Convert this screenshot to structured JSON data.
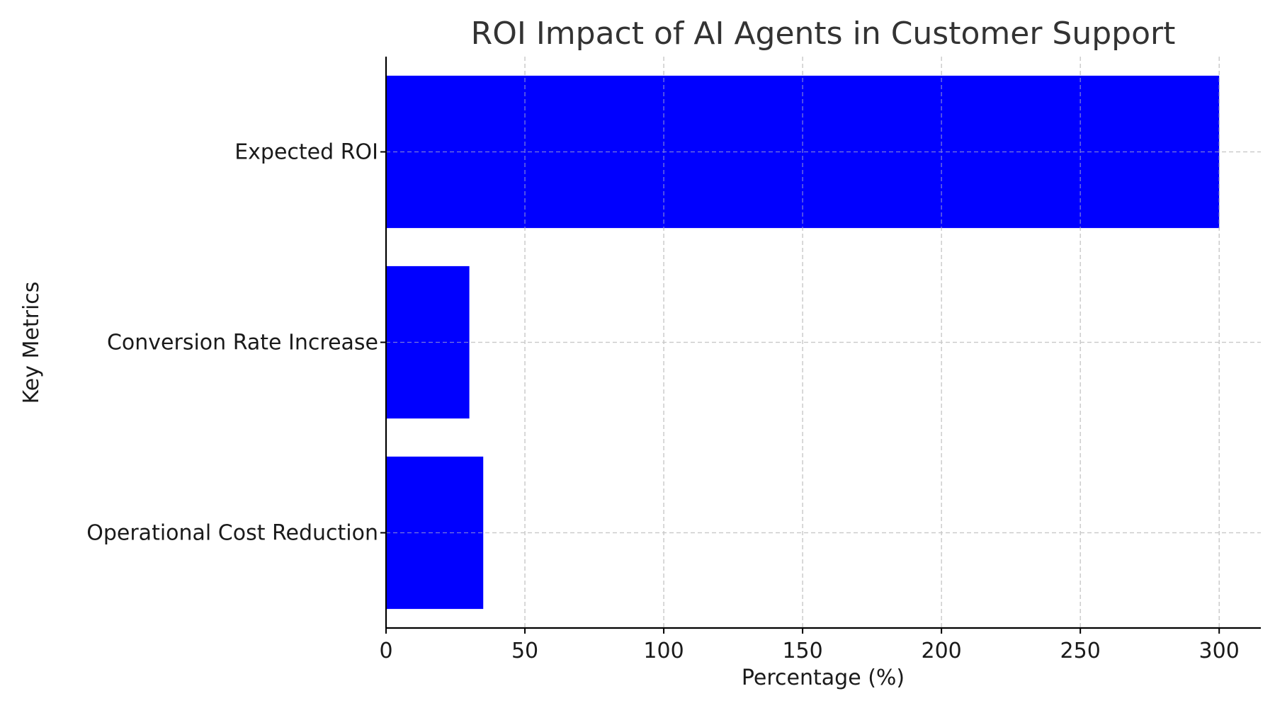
{
  "chart_data": {
    "type": "bar",
    "orientation": "horizontal",
    "title": "ROI Impact of AI Agents in Customer Support",
    "xlabel": "Percentage (%)",
    "ylabel": "Key Metrics",
    "categories": [
      "Operational Cost Reduction",
      "Conversion Rate Increase",
      "Expected ROI"
    ],
    "values": [
      35,
      30,
      300
    ],
    "xlim": [
      0,
      315
    ],
    "xticks": [
      "0",
      "50",
      "100",
      "150",
      "200",
      "250",
      "300"
    ],
    "grid": true,
    "bar_color": "#0000ff"
  }
}
